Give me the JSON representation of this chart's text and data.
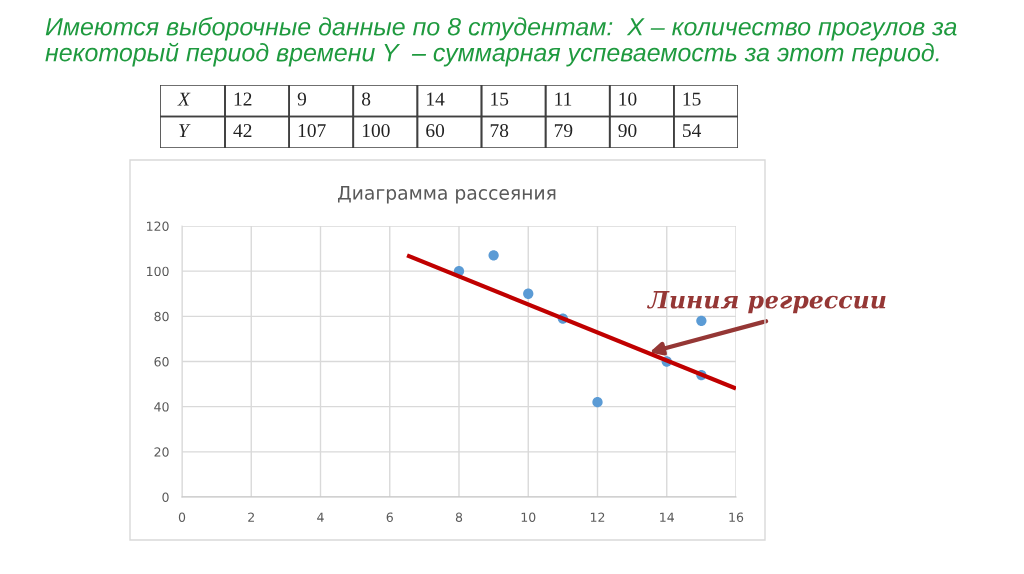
{
  "chart_data": [
    {
      "type": "other",
      "title": "Имеются выборочные данные по 8 студентам:  X – количество прогулов за\nнекоторый период времени Y  – суммарная успеваемость за этот период.",
      "y_categories": [
        "X",
        "Y"
      ],
      "cell_labels": [
        [
          "12",
          "9",
          "8",
          "14",
          "15",
          "11",
          "10",
          "15"
        ],
        [
          "42",
          "107",
          "100",
          "60",
          "78",
          "79",
          "90",
          "54"
        ]
      ]
    },
    {
      "type": "scatter",
      "title": "Диаграмма рассеяния",
      "x": [
        12,
        9,
        8,
        14,
        15,
        11,
        10,
        15
      ],
      "series": [
        {
          "type": "scatter",
          "color": "#5b9bd5",
          "marker": "circle",
          "values": [
            42,
            107,
            100,
            60,
            78,
            79,
            90,
            54
          ]
        },
        {
          "type": "line",
          "color": "#c00000",
          "marker": "none",
          "line_style": "solid",
          "x": [
            6.5,
            16
          ],
          "values": [
            107,
            48
          ]
        }
      ],
      "xlim": [
        0,
        16
      ],
      "xticks": [
        0,
        2,
        4,
        6,
        8,
        10,
        12,
        14,
        16
      ],
      "ylim": [
        0,
        120
      ],
      "yticks": [
        0,
        20,
        40,
        60,
        80,
        100,
        120
      ],
      "grid": true,
      "annotations": [
        {
          "text": "Линия регрессии",
          "x": 13.5,
          "y": 64
        }
      ]
    }
  ]
}
